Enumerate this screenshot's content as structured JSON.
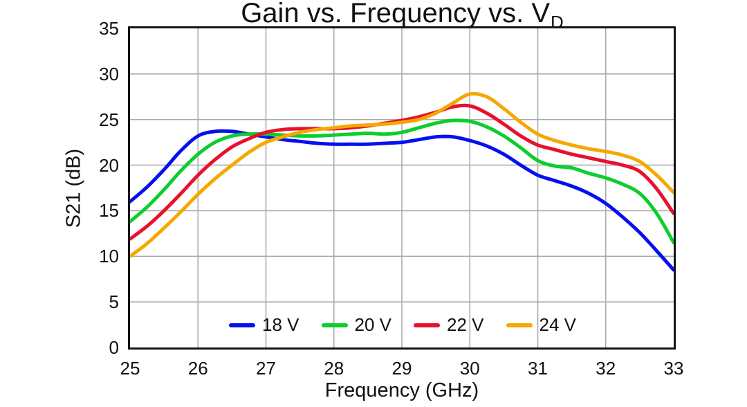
{
  "figure": {
    "title_main": "Gain vs. Frequency vs. V",
    "title_sub": "D"
  },
  "chart_data": {
    "type": "line",
    "title": "Gain vs. Frequency vs. V_D",
    "xlabel": "Frequency (GHz)",
    "ylabel": "S21 (dB)",
    "xlim": [
      25,
      33
    ],
    "ylim": [
      0,
      35
    ],
    "xticks": [
      25,
      26,
      27,
      28,
      29,
      30,
      31,
      32,
      33
    ],
    "yticks": [
      0,
      5,
      10,
      15,
      20,
      25,
      30,
      35
    ],
    "grid": true,
    "grid_color": "#ABABAB",
    "legend_position": "inside-bottom-center",
    "x": [
      25,
      25.25,
      25.5,
      25.75,
      26,
      26.25,
      26.5,
      26.75,
      27,
      27.25,
      27.5,
      27.75,
      28,
      28.25,
      28.5,
      28.75,
      29,
      29.25,
      29.5,
      29.75,
      30,
      30.25,
      30.5,
      30.75,
      31,
      31.25,
      31.5,
      31.75,
      32,
      32.25,
      32.5,
      32.75,
      33
    ],
    "series": [
      {
        "name": "18 V",
        "color": "#0510EE",
        "values": [
          16.0,
          17.6,
          19.5,
          21.6,
          23.2,
          23.7,
          23.7,
          23.4,
          23.1,
          22.8,
          22.6,
          22.4,
          22.3,
          22.3,
          22.3,
          22.4,
          22.5,
          22.8,
          23.1,
          23.1,
          22.7,
          22.1,
          21.2,
          20.0,
          18.9,
          18.3,
          17.7,
          16.9,
          15.8,
          14.3,
          12.6,
          10.6,
          8.5
        ]
      },
      {
        "name": "20 V",
        "color": "#0CCE2C",
        "values": [
          13.8,
          15.4,
          17.3,
          19.4,
          21.2,
          22.5,
          23.2,
          23.4,
          23.4,
          23.3,
          23.2,
          23.2,
          23.3,
          23.4,
          23.5,
          23.4,
          23.6,
          24.1,
          24.6,
          24.9,
          24.8,
          24.2,
          23.2,
          21.9,
          20.5,
          19.9,
          19.7,
          19.1,
          18.6,
          17.9,
          16.9,
          14.7,
          11.5
        ]
      },
      {
        "name": "22 V",
        "color": "#E8112D",
        "values": [
          11.9,
          13.3,
          15.0,
          16.9,
          18.9,
          20.6,
          22.0,
          22.9,
          23.6,
          23.9,
          24.0,
          24.0,
          24.0,
          24.1,
          24.3,
          24.6,
          24.9,
          25.3,
          25.8,
          26.4,
          26.5,
          25.7,
          24.5,
          23.2,
          22.2,
          21.7,
          21.2,
          20.8,
          20.4,
          20.0,
          19.3,
          17.4,
          14.7
        ]
      },
      {
        "name": "24 V",
        "color": "#F5A800",
        "values": [
          10.0,
          11.4,
          13.1,
          14.9,
          16.8,
          18.5,
          20.0,
          21.4,
          22.5,
          23.1,
          23.6,
          23.9,
          24.1,
          24.3,
          24.4,
          24.5,
          24.7,
          25.0,
          25.7,
          26.8,
          27.8,
          27.5,
          26.2,
          24.7,
          23.4,
          22.7,
          22.2,
          21.8,
          21.5,
          21.1,
          20.4,
          18.9,
          17.0
        ]
      }
    ]
  }
}
